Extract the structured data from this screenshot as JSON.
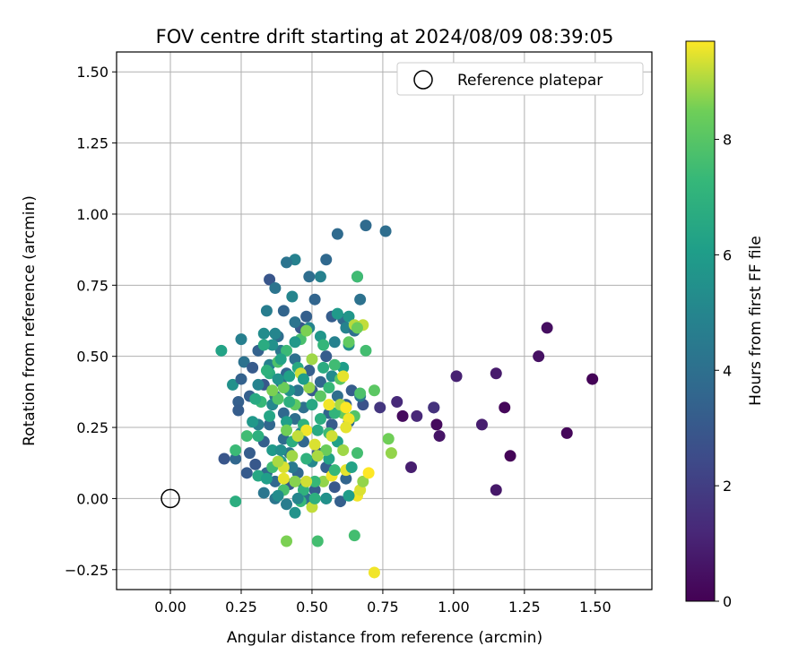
{
  "chart_data": {
    "type": "scatter",
    "title": "FOV centre drift starting at 2024/08/09 08:39:05",
    "xlabel": "Angular distance from reference (arcmin)",
    "ylabel": "Rotation from reference (arcmin)",
    "colorbar_label": "Hours from first FF file",
    "xlim": [
      -0.19,
      1.7
    ],
    "ylim": [
      -0.32,
      1.57
    ],
    "x_ticks": [
      0.0,
      0.25,
      0.5,
      0.75,
      1.0,
      1.25,
      1.5
    ],
    "x_tick_labels": [
      "0.00",
      "0.25",
      "0.50",
      "0.75",
      "1.00",
      "1.25",
      "1.50"
    ],
    "y_ticks": [
      -0.25,
      0.0,
      0.25,
      0.5,
      0.75,
      1.0,
      1.25,
      1.5
    ],
    "y_tick_labels": [
      "−0.25",
      "0.00",
      "0.25",
      "0.50",
      "0.75",
      "1.00",
      "1.25",
      "1.50"
    ],
    "colorbar_range": [
      0,
      9.7
    ],
    "colorbar_ticks": [
      0,
      2,
      4,
      6,
      8
    ],
    "colorbar_tick_labels": [
      "0",
      "2",
      "4",
      "6",
      "8"
    ],
    "colormap": "viridis",
    "grid": true,
    "legend": {
      "entries": [
        "Reference platepar"
      ],
      "placement": "top-right"
    },
    "reference_point": {
      "x": 0.0,
      "y": 0.0
    },
    "points": [
      [
        1.49,
        0.42,
        0.1
      ],
      [
        1.4,
        0.23,
        0.2
      ],
      [
        1.33,
        0.6,
        0.4
      ],
      [
        1.3,
        0.5,
        0.5
      ],
      [
        1.2,
        0.15,
        0.1
      ],
      [
        1.18,
        0.32,
        0.2
      ],
      [
        1.15,
        0.44,
        0.8
      ],
      [
        1.15,
        0.03,
        0.7
      ],
      [
        1.1,
        0.26,
        0.9
      ],
      [
        1.01,
        0.43,
        1.0
      ],
      [
        0.95,
        0.22,
        0.6
      ],
      [
        0.94,
        0.26,
        0.3
      ],
      [
        0.93,
        0.32,
        1.4
      ],
      [
        0.87,
        0.29,
        1.2
      ],
      [
        0.85,
        0.11,
        0.9
      ],
      [
        0.82,
        0.29,
        0.3
      ],
      [
        0.8,
        0.34,
        1.3
      ],
      [
        0.74,
        0.32,
        1.7
      ],
      [
        0.93,
        0.32,
        1.6
      ],
      [
        0.69,
        0.96,
        3.8
      ],
      [
        0.76,
        0.94,
        3.9
      ],
      [
        0.59,
        0.93,
        3.8
      ],
      [
        0.44,
        0.84,
        4.8
      ],
      [
        0.55,
        0.84,
        3.7
      ],
      [
        0.41,
        0.83,
        4.2
      ],
      [
        0.49,
        0.78,
        3.9
      ],
      [
        0.35,
        0.77,
        2.9
      ],
      [
        0.53,
        0.78,
        4.8
      ],
      [
        0.66,
        0.78,
        3.6
      ],
      [
        0.43,
        0.71,
        5.0
      ],
      [
        0.37,
        0.74,
        4.2
      ],
      [
        0.67,
        0.7,
        4.1
      ],
      [
        0.34,
        0.66,
        4.6
      ],
      [
        0.51,
        0.7,
        3.5
      ],
      [
        0.4,
        0.66,
        3.5
      ],
      [
        0.48,
        0.64,
        3.3
      ],
      [
        0.57,
        0.64,
        3.2
      ],
      [
        0.61,
        0.63,
        3.8
      ],
      [
        0.62,
        0.6,
        4.9
      ],
      [
        0.46,
        0.6,
        3.0
      ],
      [
        0.33,
        0.58,
        5.3
      ],
      [
        0.25,
        0.56,
        4.7
      ],
      [
        0.38,
        0.57,
        3.9
      ],
      [
        0.39,
        0.52,
        4.4
      ],
      [
        0.36,
        0.54,
        5.5
      ],
      [
        0.31,
        0.52,
        3.4
      ],
      [
        0.26,
        0.48,
        4.1
      ],
      [
        0.18,
        0.52,
        6.3
      ],
      [
        0.29,
        0.46,
        3.1
      ],
      [
        0.33,
        0.4,
        3.0
      ],
      [
        0.22,
        0.4,
        5.5
      ],
      [
        0.25,
        0.42,
        3.4
      ],
      [
        0.28,
        0.36,
        3.3
      ],
      [
        0.24,
        0.34,
        3.3
      ],
      [
        0.24,
        0.31,
        3.2
      ],
      [
        0.31,
        0.26,
        4.6
      ],
      [
        0.33,
        0.2,
        3.3
      ],
      [
        0.28,
        0.16,
        3.2
      ],
      [
        0.19,
        0.14,
        2.9
      ],
      [
        0.23,
        0.14,
        3.6
      ],
      [
        0.3,
        0.12,
        3.0
      ],
      [
        0.34,
        0.09,
        3.8
      ],
      [
        0.27,
        0.09,
        3.1
      ],
      [
        0.37,
        0.06,
        3.7
      ],
      [
        0.33,
        0.02,
        4.3
      ],
      [
        0.37,
        0.0,
        4.3
      ],
      [
        0.41,
        -0.02,
        4.6
      ],
      [
        0.44,
        -0.05,
        5.6
      ],
      [
        0.42,
        0.05,
        3.0
      ],
      [
        0.45,
        0.09,
        3.7
      ],
      [
        0.47,
        0.05,
        3.3
      ],
      [
        0.48,
        0.0,
        4.0
      ],
      [
        0.51,
        0.03,
        3.2
      ],
      [
        0.55,
        0.0,
        3.8
      ],
      [
        0.58,
        0.04,
        3.0
      ],
      [
        0.6,
        -0.01,
        3.3
      ],
      [
        0.62,
        0.07,
        3.5
      ],
      [
        0.55,
        0.11,
        3.3
      ],
      [
        0.52,
        0.16,
        3.2
      ],
      [
        0.57,
        0.26,
        3.1
      ],
      [
        0.62,
        0.33,
        3.4
      ],
      [
        0.59,
        0.36,
        3.9
      ],
      [
        0.53,
        0.41,
        3.6
      ],
      [
        0.49,
        0.45,
        3.3
      ],
      [
        0.44,
        0.49,
        4.0
      ],
      [
        0.41,
        0.44,
        3.6
      ],
      [
        0.47,
        0.32,
        4.0
      ],
      [
        0.44,
        0.28,
        3.9
      ],
      [
        0.4,
        0.3,
        3.7
      ],
      [
        0.37,
        0.36,
        4.1
      ],
      [
        0.35,
        0.26,
        3.6
      ],
      [
        0.4,
        0.21,
        3.8
      ],
      [
        0.47,
        0.2,
        3.6
      ],
      [
        0.42,
        0.16,
        4.1
      ],
      [
        0.39,
        0.41,
        3.7
      ],
      [
        0.45,
        0.38,
        4.2
      ],
      [
        0.5,
        0.38,
        3.1
      ],
      [
        0.56,
        0.3,
        3.5
      ],
      [
        0.64,
        0.38,
        3.2
      ],
      [
        0.68,
        0.33,
        2.8
      ],
      [
        0.63,
        0.27,
        3.8
      ],
      [
        0.67,
        0.36,
        4.4
      ],
      [
        0.55,
        0.5,
        3.2
      ],
      [
        0.58,
        0.55,
        4.8
      ],
      [
        0.65,
        0.59,
        4.0
      ],
      [
        0.49,
        0.6,
        4.9
      ],
      [
        0.44,
        0.62,
        4.2
      ],
      [
        0.37,
        0.58,
        5.0
      ],
      [
        0.31,
        0.4,
        4.9
      ],
      [
        0.35,
        0.47,
        4.8
      ],
      [
        0.42,
        0.38,
        5.5
      ],
      [
        0.46,
        0.23,
        5.2
      ],
      [
        0.43,
        0.11,
        4.5
      ],
      [
        0.39,
        0.13,
        5.8
      ],
      [
        0.36,
        0.17,
        5.9
      ],
      [
        0.5,
        0.13,
        5.1
      ],
      [
        0.52,
        0.24,
        6.6
      ],
      [
        0.56,
        0.14,
        6.3
      ],
      [
        0.59,
        0.2,
        6.2
      ],
      [
        0.53,
        0.57,
        5.7
      ],
      [
        0.59,
        0.65,
        5.9
      ],
      [
        0.63,
        0.54,
        5.4
      ],
      [
        0.61,
        0.46,
        6.0
      ],
      [
        0.41,
        0.27,
        6.1
      ],
      [
        0.36,
        0.33,
        5.1
      ],
      [
        0.39,
        0.17,
        5.4
      ],
      [
        0.45,
        0.46,
        6.6
      ],
      [
        0.57,
        0.43,
        5.2
      ],
      [
        0.63,
        0.64,
        5.7
      ],
      [
        0.32,
        0.34,
        7.3
      ],
      [
        0.31,
        0.22,
        6.9
      ],
      [
        0.27,
        0.22,
        7.5
      ],
      [
        0.23,
        0.17,
        7.4
      ],
      [
        0.23,
        -0.01,
        6.8
      ],
      [
        0.31,
        0.08,
        6.5
      ],
      [
        0.36,
        0.11,
        7.5
      ],
      [
        0.4,
        0.03,
        7.7
      ],
      [
        0.46,
        -0.01,
        7.3
      ],
      [
        0.47,
        0.03,
        7.0
      ],
      [
        0.52,
        -0.15,
        7.6
      ],
      [
        0.41,
        -0.15,
        8.6
      ],
      [
        0.65,
        -0.13,
        7.6
      ],
      [
        0.66,
        0.16,
        7.6
      ],
      [
        0.67,
        0.37,
        7.8
      ],
      [
        0.69,
        0.52,
        7.6
      ],
      [
        0.66,
        0.78,
        7.5
      ],
      [
        0.72,
        0.38,
        8.1
      ],
      [
        0.77,
        0.21,
        8.5
      ],
      [
        0.78,
        0.16,
        8.8
      ],
      [
        0.38,
        0.48,
        7.8
      ],
      [
        0.41,
        0.52,
        7.4
      ],
      [
        0.46,
        0.56,
        7.7
      ],
      [
        0.48,
        0.59,
        8.6
      ],
      [
        0.49,
        0.39,
        8.8
      ],
      [
        0.4,
        0.39,
        8.4
      ],
      [
        0.38,
        0.35,
        7.9
      ],
      [
        0.44,
        0.33,
        8.2
      ],
      [
        0.47,
        0.26,
        7.0
      ],
      [
        0.53,
        0.36,
        8.1
      ],
      [
        0.56,
        0.39,
        7.3
      ],
      [
        0.6,
        0.42,
        8.0
      ],
      [
        0.61,
        0.3,
        8.3
      ],
      [
        0.65,
        0.29,
        7.9
      ],
      [
        0.58,
        0.3,
        7.1
      ],
      [
        0.56,
        0.23,
        7.4
      ],
      [
        0.55,
        0.17,
        8.4
      ],
      [
        0.61,
        0.17,
        8.9
      ],
      [
        0.54,
        0.06,
        8.8
      ],
      [
        0.51,
        0.06,
        7.3
      ],
      [
        0.48,
        0.14,
        7.0
      ],
      [
        0.43,
        0.2,
        6.8
      ],
      [
        0.41,
        0.24,
        8.5
      ],
      [
        0.36,
        0.38,
        8.6
      ],
      [
        0.46,
        0.44,
        9.3
      ],
      [
        0.5,
        0.49,
        8.9
      ],
      [
        0.54,
        0.54,
        7.2
      ],
      [
        0.58,
        0.47,
        7.5
      ],
      [
        0.63,
        0.55,
        8.2
      ],
      [
        0.65,
        0.61,
        9.1
      ],
      [
        0.68,
        0.61,
        9.2
      ],
      [
        0.66,
        0.6,
        8.4
      ],
      [
        0.61,
        0.43,
        9.5
      ],
      [
        0.6,
        0.33,
        9.0
      ],
      [
        0.57,
        0.22,
        9.3
      ],
      [
        0.51,
        0.19,
        9.4
      ],
      [
        0.48,
        0.24,
        9.6
      ],
      [
        0.45,
        0.22,
        9.2
      ],
      [
        0.43,
        0.15,
        8.9
      ],
      [
        0.4,
        0.11,
        9.4
      ],
      [
        0.38,
        0.13,
        9.0
      ],
      [
        0.4,
        0.07,
        9.5
      ],
      [
        0.44,
        0.06,
        8.7
      ],
      [
        0.48,
        0.06,
        9.3
      ],
      [
        0.52,
        0.15,
        9.0
      ],
      [
        0.57,
        0.08,
        9.6
      ],
      [
        0.62,
        0.1,
        9.5
      ],
      [
        0.66,
        0.01,
        9.6
      ],
      [
        0.67,
        0.03,
        9.4
      ],
      [
        0.68,
        0.06,
        8.8
      ],
      [
        0.7,
        0.09,
        9.7
      ],
      [
        0.63,
        0.28,
        9.6
      ],
      [
        0.62,
        0.25,
        9.5
      ],
      [
        0.62,
        0.32,
        9.7
      ],
      [
        0.56,
        0.33,
        9.6
      ],
      [
        0.5,
        -0.03,
        9.2
      ],
      [
        0.72,
        -0.26,
        9.6
      ],
      [
        0.35,
        0.44,
        6.8
      ],
      [
        0.3,
        0.35,
        6.6
      ],
      [
        0.33,
        0.54,
        6.7
      ],
      [
        0.35,
        0.29,
        6.4
      ],
      [
        0.42,
        0.34,
        6.9
      ],
      [
        0.5,
        0.33,
        6.5
      ],
      [
        0.53,
        0.28,
        6.8
      ],
      [
        0.54,
        0.46,
        6.7
      ],
      [
        0.47,
        0.42,
        6.0
      ],
      [
        0.42,
        0.43,
        6.2
      ],
      [
        0.38,
        0.42,
        5.6
      ],
      [
        0.44,
        0.55,
        5.8
      ],
      [
        0.39,
        0.49,
        6.3
      ],
      [
        0.34,
        0.45,
        7.0
      ],
      [
        0.29,
        0.27,
        5.8
      ],
      [
        0.34,
        0.07,
        6.1
      ],
      [
        0.38,
        0.01,
        5.3
      ],
      [
        0.45,
        0.0,
        5.0
      ],
      [
        0.55,
        0.0,
        5.5
      ],
      [
        0.51,
        0.0,
        6.9
      ],
      [
        0.58,
        0.1,
        7.3
      ],
      [
        0.64,
        0.11,
        6.3
      ],
      [
        0.63,
        0.01,
        6.0
      ]
    ]
  }
}
